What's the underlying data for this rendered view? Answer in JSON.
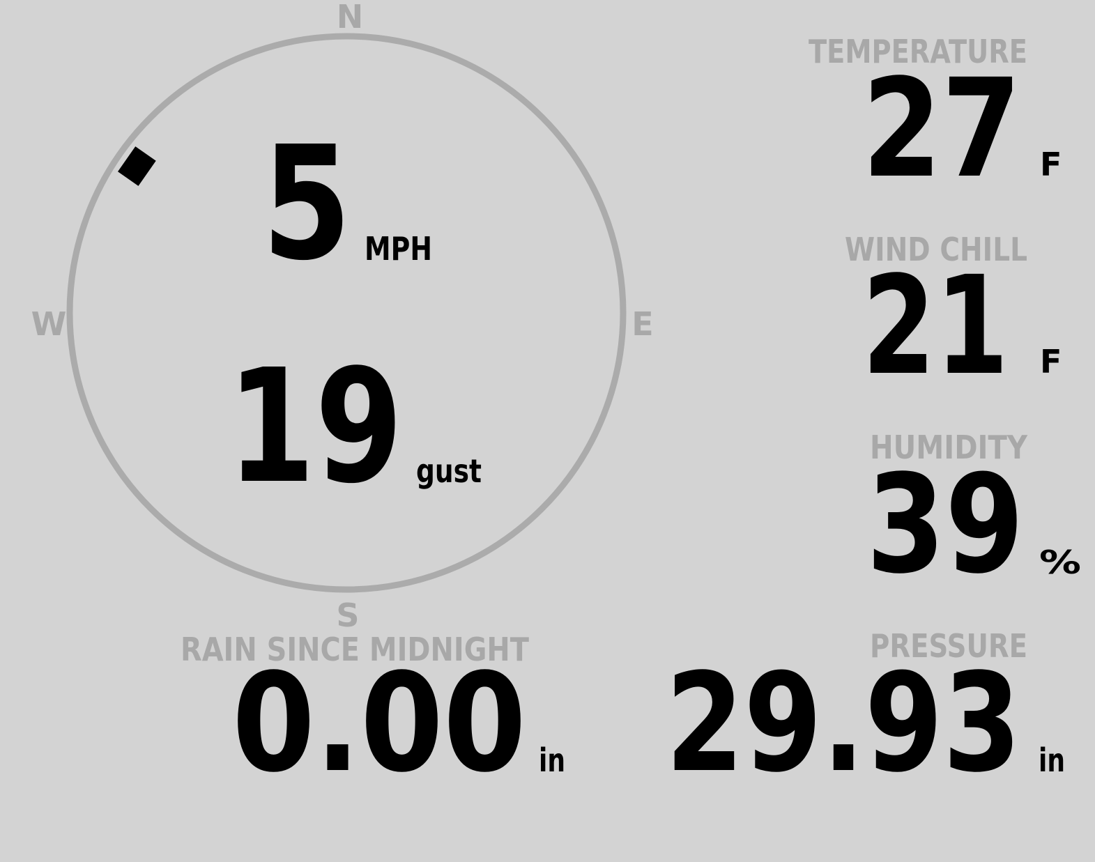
{
  "wind": {
    "compass": {
      "north": "N",
      "east": "E",
      "south": "S",
      "west": "W"
    },
    "direction": 305,
    "speed": "5",
    "speed_unit": "MPH",
    "gust": "19",
    "gust_unit": "gust"
  },
  "temperature": {
    "label": "TEMPERATURE",
    "value": "27",
    "unit": "F"
  },
  "wind_chill": {
    "label": "WIND CHILL",
    "value": "21",
    "unit": "F"
  },
  "humidity": {
    "label": "HUMIDITY",
    "value": "39",
    "unit": "%"
  },
  "rain": {
    "label": "RAIN SINCE MIDNIGHT",
    "value": "0.00",
    "unit": "in"
  },
  "pressure": {
    "label": "PRESSURE",
    "value": "29.93",
    "unit": "in"
  }
}
